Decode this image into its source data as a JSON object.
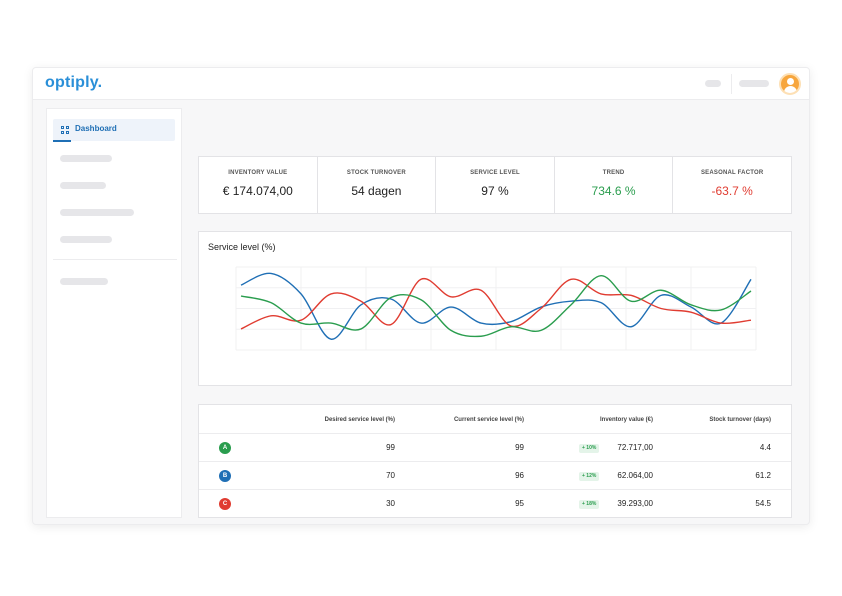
{
  "app": {
    "logo": "optiply."
  },
  "sidebar": {
    "active_item": {
      "label": "Dashboard",
      "icon": "grid-icon"
    }
  },
  "kpis": [
    {
      "label": "INVENTORY VALUE",
      "value": "€ 174.074,00",
      "color": "#222222"
    },
    {
      "label": "STOCK TURNOVER",
      "value": "54 dagen",
      "color": "#222222"
    },
    {
      "label": "SERVICE LEVEL",
      "value": "97 %",
      "color": "#222222"
    },
    {
      "label": "TREND",
      "value": "734.6 %",
      "color": "#2a9d4e"
    },
    {
      "label": "SEASONAL FACTOR",
      "value": "-63.7 %",
      "color": "#e03c31"
    }
  ],
  "chart": {
    "title": "Service level (%)"
  },
  "chart_data": {
    "type": "line",
    "title": "Service level (%)",
    "grid": true,
    "series": [
      {
        "color": "#1f6fb5",
        "values": [
          0.82,
          0.98,
          0.7,
          0.08,
          0.55,
          0.63,
          0.3,
          0.52,
          0.3,
          0.32,
          0.52,
          0.6,
          0.58,
          0.25,
          0.68,
          0.52,
          0.3,
          0.9
        ]
      },
      {
        "color": "#e03c31",
        "values": [
          0.22,
          0.4,
          0.34,
          0.7,
          0.6,
          0.28,
          0.9,
          0.66,
          0.75,
          0.26,
          0.5,
          0.9,
          0.7,
          0.68,
          0.5,
          0.45,
          0.3,
          0.34
        ]
      },
      {
        "color": "#2a9d4e",
        "values": [
          0.67,
          0.58,
          0.3,
          0.3,
          0.22,
          0.65,
          0.62,
          0.2,
          0.12,
          0.25,
          0.2,
          0.55,
          0.95,
          0.6,
          0.75,
          0.55,
          0.48,
          0.74
        ]
      }
    ]
  },
  "table": {
    "headers": [
      "Desired service level (%)",
      "Current service level (%)",
      "Inventory value (€)",
      "Stock turnover (days)"
    ],
    "rows": [
      {
        "badge": "A",
        "badge_color": "#2a9d4e",
        "desired": "99",
        "current": "99",
        "trend": "+ 10%",
        "inventory": "72.717,00",
        "turnover": "4.4"
      },
      {
        "badge": "B",
        "badge_color": "#1f6fb5",
        "desired": "70",
        "current": "96",
        "trend": "+ 12%",
        "inventory": "62.064,00",
        "turnover": "61.2"
      },
      {
        "badge": "C",
        "badge_color": "#e03c31",
        "desired": "30",
        "current": "95",
        "trend": "+ 18%",
        "inventory": "39.293,00",
        "turnover": "54.5"
      }
    ]
  }
}
